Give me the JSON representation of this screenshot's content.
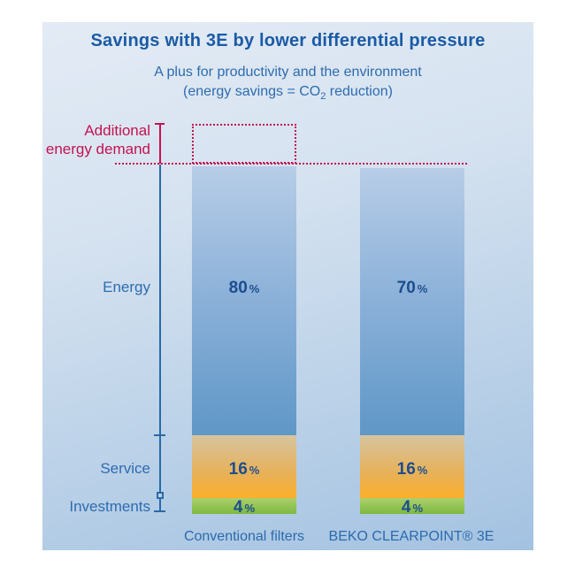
{
  "title": "Savings with 3E by lower differential pressure",
  "subtitle": {
    "line1": "A plus for productivity and the environment",
    "line2_pre": "(energy savings = CO",
    "line2_sub": "2",
    "line2_post": " reduction)"
  },
  "annotation": {
    "line1": "Additional",
    "line2": "energy demand"
  },
  "row_labels": {
    "energy": "Energy",
    "service": "Service",
    "investments": "Investments"
  },
  "pct_sign": "%",
  "bars": [
    {
      "label": "Conventional filters",
      "energy": "80",
      "service": "16",
      "investments": "4"
    },
    {
      "label": "BEKO CLEARPOINT® 3E",
      "energy": "70",
      "service": "16",
      "investments": "4"
    }
  ],
  "colors": {
    "accent_red": "#c31350",
    "title_blue": "#1a5ba6",
    "label_blue": "#2d6cb0",
    "value_navy": "#1c4e8f",
    "axis_blue": "#2a6aa8",
    "energy_top": "#b7cde7",
    "energy_bottom": "#5f97c7",
    "service_top": "#d6c5a0",
    "service_bottom": "#fcaf2b",
    "investments_top": "#aecf6c",
    "investments_bottom": "#7db940",
    "panel_top": "#e3ebf5",
    "panel_bottom": "#a3c2e1"
  },
  "chart_data": {
    "type": "bar",
    "stacked": true,
    "categories": [
      "Conventional filters",
      "BEKO CLEARPOINT® 3E"
    ],
    "series": [
      {
        "name": "Energy",
        "values": [
          80,
          70
        ]
      },
      {
        "name": "Service",
        "values": [
          16,
          16
        ]
      },
      {
        "name": "Investments",
        "values": [
          4,
          4
        ]
      }
    ],
    "unit": "%",
    "title": "Savings with 3E by lower differential pressure",
    "subtitle": "A plus for productivity and the environment (energy savings = CO2 reduction)",
    "annotations": [
      {
        "text": "Additional energy demand",
        "target": "Conventional filters",
        "style": "red dotted box above first bar, red dotted baseline across both bars"
      }
    ],
    "grid": false,
    "legend_position": "left axis labels"
  }
}
